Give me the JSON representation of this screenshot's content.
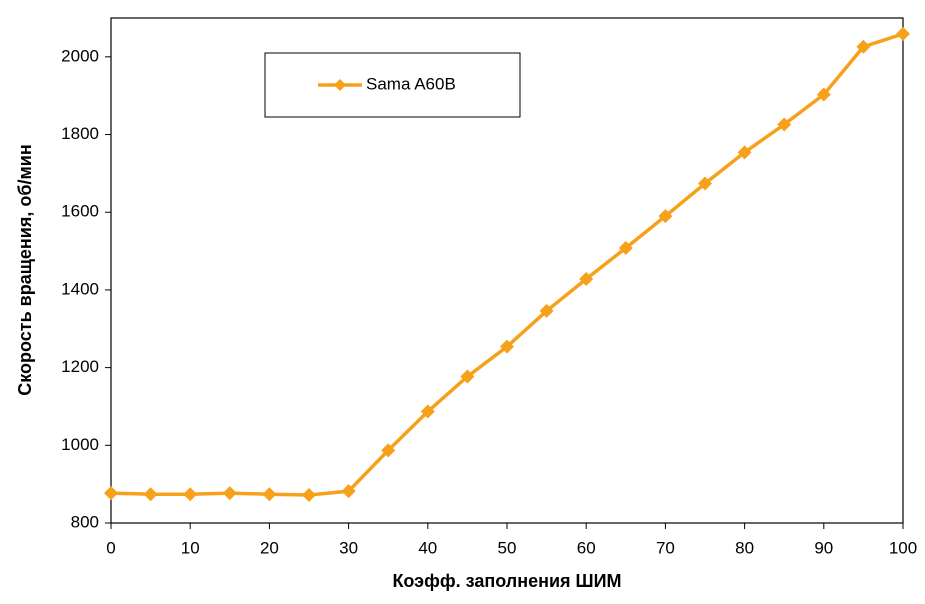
{
  "chart_data": {
    "type": "line",
    "xlabel": "Коэфф. заполнения ШИМ",
    "ylabel": "Скорость вращения, об/мин",
    "x": [
      0,
      5,
      10,
      15,
      20,
      25,
      30,
      35,
      40,
      45,
      50,
      55,
      60,
      65,
      70,
      75,
      80,
      85,
      90,
      95,
      100
    ],
    "series": [
      {
        "name": "Sama A60B",
        "color": "#f7a11a",
        "values": [
          877,
          874,
          874,
          877,
          874,
          872,
          882,
          987,
          1087,
          1177,
          1254,
          1346,
          1428,
          1508,
          1590,
          1674,
          1754,
          1826,
          1903,
          2026,
          2059
        ]
      }
    ],
    "xlim": [
      0,
      100
    ],
    "xticks": [
      0,
      10,
      20,
      30,
      40,
      50,
      60,
      70,
      80,
      90,
      100
    ],
    "ylim": [
      800,
      2100
    ],
    "yticks": [
      800,
      1000,
      1200,
      1400,
      1600,
      1800,
      2000
    ],
    "grid": false,
    "legend": "top-left"
  }
}
